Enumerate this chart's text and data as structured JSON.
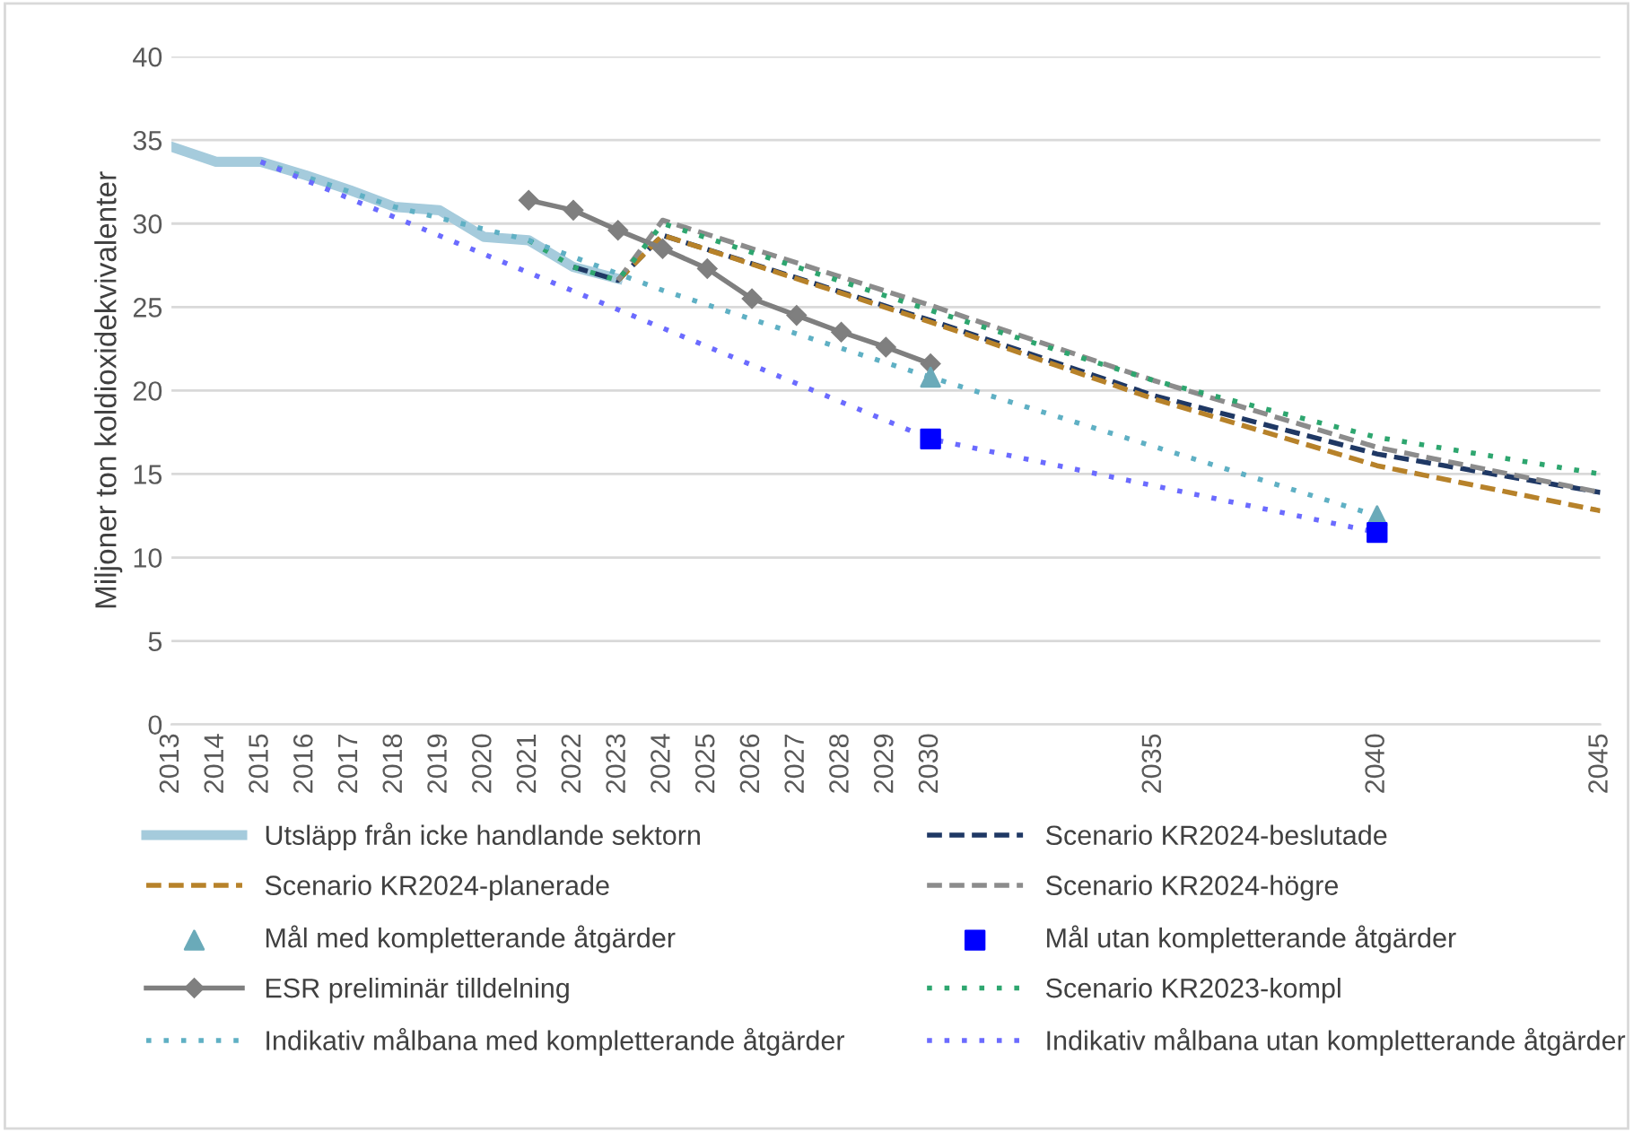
{
  "chart_data": {
    "type": "line",
    "ylabel": "Miljoner ton koldioxidekvivalenter",
    "xlim": [
      2013,
      2045
    ],
    "xticks": [
      2013,
      2014,
      2015,
      2016,
      2017,
      2018,
      2019,
      2020,
      2021,
      2022,
      2023,
      2024,
      2025,
      2026,
      2027,
      2028,
      2029,
      2030,
      2035,
      2040,
      2045
    ],
    "ylim": [
      0,
      40
    ],
    "yticks": [
      0,
      5,
      10,
      15,
      20,
      25,
      30,
      35,
      40
    ],
    "grid": "y",
    "legend": "bottom",
    "series": [
      {
        "name": "Utsläpp från icke handlande sektorn",
        "color": "#a5cbdc",
        "line_style": "solid",
        "marker": "none",
        "x": [
          2013,
          2014,
          2015,
          2016,
          2017,
          2018,
          2019,
          2020,
          2021,
          2022,
          2023
        ],
        "values": [
          34.6,
          33.7,
          33.7,
          32.9,
          32.0,
          31.0,
          30.8,
          29.2,
          29.0,
          27.4,
          26.7
        ]
      },
      {
        "name": "Scenario KR2024-beslutade",
        "color": "#1f3864",
        "line_style": "dashed",
        "marker": "none",
        "x": [
          2022,
          2023,
          2024,
          2030,
          2035,
          2040,
          2045
        ],
        "values": [
          27.4,
          26.6,
          29.3,
          24.2,
          19.7,
          16.2,
          13.9
        ]
      },
      {
        "name": "Scenario KR2024-planerade",
        "color": "#b7822a",
        "line_style": "dashed",
        "marker": "none",
        "x": [
          2023,
          2024,
          2030,
          2035,
          2040,
          2045
        ],
        "values": [
          26.6,
          29.3,
          24.1,
          19.5,
          15.5,
          12.8
        ]
      },
      {
        "name": "Scenario KR2024-högre",
        "color": "#8c8c8c",
        "line_style": "dashed",
        "marker": "none",
        "x": [
          2023,
          2024,
          2030,
          2035,
          2040,
          2045
        ],
        "values": [
          26.6,
          30.2,
          25.1,
          20.6,
          16.6,
          13.9
        ]
      },
      {
        "name": "Mål med kompletterande åtgärder",
        "type": "scatter",
        "color": "#6aaab9",
        "marker": "triangle",
        "x": [
          2030,
          2040
        ],
        "values": [
          20.8,
          12.5
        ]
      },
      {
        "name": "Mål utan kompletterande åtgärder",
        "type": "scatter",
        "color": "#0000ff",
        "marker": "square",
        "x": [
          2030,
          2040
        ],
        "values": [
          17.1,
          11.5
        ]
      },
      {
        "name": "ESR preliminär tilldelning",
        "color": "#7f7f7f",
        "line_style": "solid",
        "marker": "diamond",
        "x": [
          2021,
          2022,
          2023,
          2024,
          2025,
          2026,
          2027,
          2028,
          2029,
          2030
        ],
        "values": [
          31.4,
          30.8,
          29.6,
          28.5,
          27.3,
          25.5,
          24.5,
          23.5,
          22.6,
          21.6
        ]
      },
      {
        "name": "Scenario KR2023-kompl",
        "color": "#2ea66f",
        "line_style": "dotted",
        "marker": "none",
        "x": [
          2021,
          2022,
          2023,
          2024,
          2030,
          2035,
          2040,
          2045
        ],
        "values": [
          29.0,
          27.4,
          26.6,
          30.0,
          24.8,
          20.6,
          17.2,
          15.0
        ]
      },
      {
        "name": "Indikativ målbana med kompletterande åtgärder",
        "color": "#5fb0c4",
        "line_style": "dotted",
        "marker": "none",
        "x": [
          2015,
          2018,
          2021,
          2024,
          2030,
          2040
        ],
        "values": [
          33.7,
          31.0,
          29.0,
          26.0,
          20.8,
          12.5
        ]
      },
      {
        "name": "Indikativ målbana utan kompletterande åtgärder",
        "color": "#6b6bff",
        "line_style": "dotted",
        "marker": "none",
        "x": [
          2015,
          2030,
          2040
        ],
        "values": [
          33.7,
          17.1,
          11.5
        ]
      }
    ]
  }
}
